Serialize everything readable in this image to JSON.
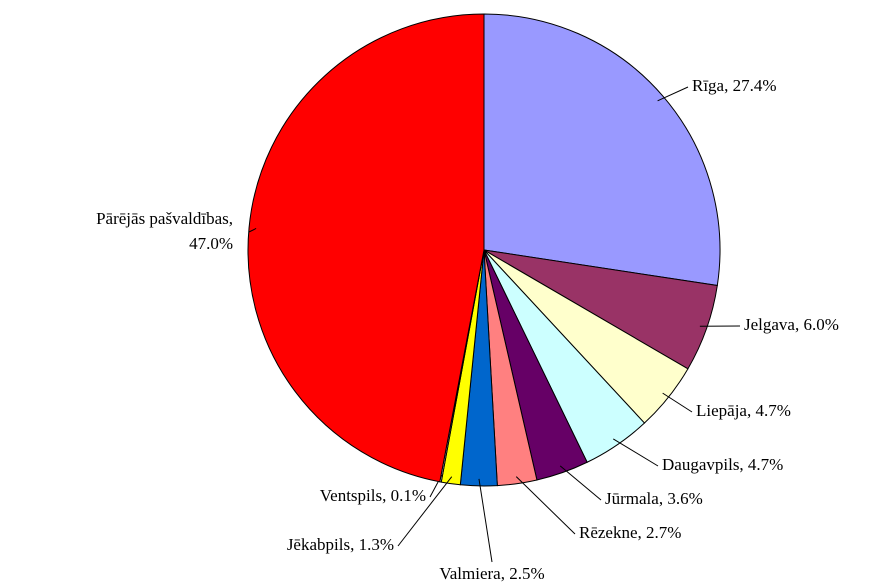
{
  "chart_data": {
    "type": "pie",
    "values": [
      27.4,
      6.0,
      4.7,
      4.7,
      3.6,
      2.7,
      2.5,
      1.3,
      0.1,
      47.0
    ],
    "value_labels": [
      "Rīga, 27.4%",
      "Jelgava, 6.0%",
      "Liepāja, 4.7%",
      "Daugavpils, 4.7%",
      "Jūrmala, 3.6%",
      "Rēzekne, 2.7%",
      "Valmiera, 2.5%",
      "Jēkabpils, 1.3%",
      "Ventspils, 0.1%",
      "Pārējās pašvaldības,\n47.0%"
    ],
    "colors": [
      "#9999ff",
      "#993366",
      "#ffffcc",
      "#ccffff",
      "#660066",
      "#ff8080",
      "#0066cc",
      "#ffff00",
      "#ccccff",
      "#ff0000"
    ]
  }
}
